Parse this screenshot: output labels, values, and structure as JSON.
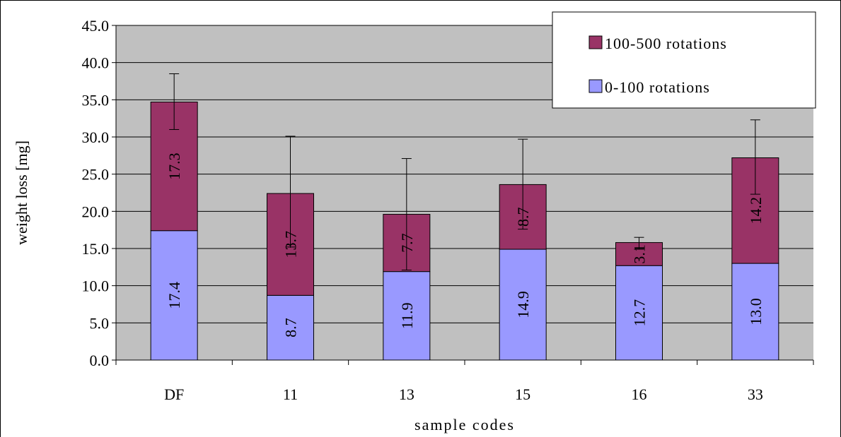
{
  "chart_data": {
    "type": "bar",
    "stacked": true,
    "title": "",
    "xlabel": "sample codes",
    "ylabel": "weight loss [mg]",
    "ylim": [
      0,
      45
    ],
    "yticks": [
      "0.0",
      "5.0",
      "10.0",
      "15.0",
      "20.0",
      "25.0",
      "30.0",
      "35.0",
      "40.0",
      "45.0"
    ],
    "grid": true,
    "legend_position": "top-right",
    "categories": [
      "DF",
      "11",
      "13",
      "15",
      "16",
      "33"
    ],
    "series": [
      {
        "name": "0-100 rotations",
        "color": "#9999ff",
        "values": [
          17.4,
          8.7,
          11.9,
          14.9,
          12.7,
          13.0
        ],
        "labels": [
          "17.4",
          "8.7",
          "11.9",
          "14.9",
          "12.7",
          "13.0"
        ]
      },
      {
        "name": "100-500 rotations",
        "color": "#993366",
        "values": [
          17.3,
          13.7,
          7.7,
          8.7,
          3.1,
          14.2
        ],
        "labels": [
          "17.3",
          "13.7",
          "7.7",
          "8.7",
          "3.1",
          "14.2"
        ]
      }
    ],
    "error_bars": {
      "lower": [
        31.0,
        15.2,
        12.1,
        17.6,
        14.9,
        22.3
      ],
      "upper": [
        38.5,
        30.1,
        27.1,
        29.7,
        16.5,
        32.3
      ]
    },
    "plot_background": "#c0c0c0"
  }
}
